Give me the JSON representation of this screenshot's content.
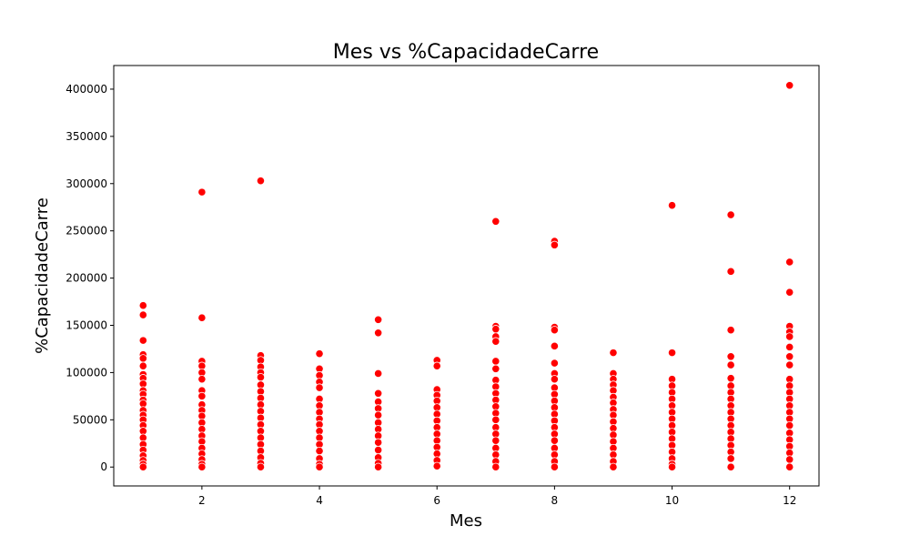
{
  "chart_data": {
    "type": "scatter",
    "title": "Mes vs %CapacidadeCarre",
    "xlabel": "Mes",
    "ylabel": "%CapacidadeCarre",
    "xlim": [
      0.5,
      12.5
    ],
    "ylim": [
      -20000,
      425000
    ],
    "xticks": [
      2,
      4,
      6,
      8,
      10,
      12
    ],
    "yticks": [
      0,
      50000,
      100000,
      150000,
      200000,
      250000,
      300000,
      350000,
      400000
    ],
    "grid": false,
    "point_color": "#ff0000",
    "points": [
      {
        "x": 1,
        "y": 171000
      },
      {
        "x": 1,
        "y": 161000
      },
      {
        "x": 1,
        "y": 134000
      },
      {
        "x": 1,
        "y": 119000
      },
      {
        "x": 1,
        "y": 115000
      },
      {
        "x": 1,
        "y": 107000
      },
      {
        "x": 1,
        "y": 98000
      },
      {
        "x": 1,
        "y": 94000
      },
      {
        "x": 1,
        "y": 88000
      },
      {
        "x": 1,
        "y": 81000
      },
      {
        "x": 1,
        "y": 77000
      },
      {
        "x": 1,
        "y": 71000
      },
      {
        "x": 1,
        "y": 67000
      },
      {
        "x": 1,
        "y": 60000
      },
      {
        "x": 1,
        "y": 55000
      },
      {
        "x": 1,
        "y": 50000
      },
      {
        "x": 1,
        "y": 44000
      },
      {
        "x": 1,
        "y": 38000
      },
      {
        "x": 1,
        "y": 31000
      },
      {
        "x": 1,
        "y": 24000
      },
      {
        "x": 1,
        "y": 18000
      },
      {
        "x": 1,
        "y": 12000
      },
      {
        "x": 1,
        "y": 7000
      },
      {
        "x": 1,
        "y": 3000
      },
      {
        "x": 1,
        "y": 0
      },
      {
        "x": 2,
        "y": 291000
      },
      {
        "x": 2,
        "y": 158000
      },
      {
        "x": 2,
        "y": 112000
      },
      {
        "x": 2,
        "y": 107000
      },
      {
        "x": 2,
        "y": 100000
      },
      {
        "x": 2,
        "y": 93000
      },
      {
        "x": 2,
        "y": 81000
      },
      {
        "x": 2,
        "y": 75000
      },
      {
        "x": 2,
        "y": 66000
      },
      {
        "x": 2,
        "y": 60000
      },
      {
        "x": 2,
        "y": 54000
      },
      {
        "x": 2,
        "y": 47000
      },
      {
        "x": 2,
        "y": 40000
      },
      {
        "x": 2,
        "y": 33000
      },
      {
        "x": 2,
        "y": 27000
      },
      {
        "x": 2,
        "y": 20000
      },
      {
        "x": 2,
        "y": 14000
      },
      {
        "x": 2,
        "y": 8000
      },
      {
        "x": 2,
        "y": 3000
      },
      {
        "x": 2,
        "y": 0
      },
      {
        "x": 3,
        "y": 303000
      },
      {
        "x": 3,
        "y": 118000
      },
      {
        "x": 3,
        "y": 113000
      },
      {
        "x": 3,
        "y": 106000
      },
      {
        "x": 3,
        "y": 100000
      },
      {
        "x": 3,
        "y": 95000
      },
      {
        "x": 3,
        "y": 87000
      },
      {
        "x": 3,
        "y": 80000
      },
      {
        "x": 3,
        "y": 73000
      },
      {
        "x": 3,
        "y": 66000
      },
      {
        "x": 3,
        "y": 59000
      },
      {
        "x": 3,
        "y": 52000
      },
      {
        "x": 3,
        "y": 45000
      },
      {
        "x": 3,
        "y": 38000
      },
      {
        "x": 3,
        "y": 31000
      },
      {
        "x": 3,
        "y": 24000
      },
      {
        "x": 3,
        "y": 17000
      },
      {
        "x": 3,
        "y": 10000
      },
      {
        "x": 3,
        "y": 4000
      },
      {
        "x": 3,
        "y": 0
      },
      {
        "x": 4,
        "y": 120000
      },
      {
        "x": 4,
        "y": 104000
      },
      {
        "x": 4,
        "y": 97000
      },
      {
        "x": 4,
        "y": 90000
      },
      {
        "x": 4,
        "y": 84000
      },
      {
        "x": 4,
        "y": 72000
      },
      {
        "x": 4,
        "y": 65000
      },
      {
        "x": 4,
        "y": 58000
      },
      {
        "x": 4,
        "y": 51000
      },
      {
        "x": 4,
        "y": 45000
      },
      {
        "x": 4,
        "y": 38000
      },
      {
        "x": 4,
        "y": 31000
      },
      {
        "x": 4,
        "y": 24000
      },
      {
        "x": 4,
        "y": 17000
      },
      {
        "x": 4,
        "y": 9000
      },
      {
        "x": 4,
        "y": 3000
      },
      {
        "x": 4,
        "y": 0
      },
      {
        "x": 5,
        "y": 156000
      },
      {
        "x": 5,
        "y": 142000
      },
      {
        "x": 5,
        "y": 99000
      },
      {
        "x": 5,
        "y": 78000
      },
      {
        "x": 5,
        "y": 69000
      },
      {
        "x": 5,
        "y": 62000
      },
      {
        "x": 5,
        "y": 55000
      },
      {
        "x": 5,
        "y": 47000
      },
      {
        "x": 5,
        "y": 40000
      },
      {
        "x": 5,
        "y": 33000
      },
      {
        "x": 5,
        "y": 26000
      },
      {
        "x": 5,
        "y": 18000
      },
      {
        "x": 5,
        "y": 10000
      },
      {
        "x": 5,
        "y": 4000
      },
      {
        "x": 5,
        "y": 0
      },
      {
        "x": 6,
        "y": 113000
      },
      {
        "x": 6,
        "y": 107000
      },
      {
        "x": 6,
        "y": 82000
      },
      {
        "x": 6,
        "y": 76000
      },
      {
        "x": 6,
        "y": 70000
      },
      {
        "x": 6,
        "y": 63000
      },
      {
        "x": 6,
        "y": 56000
      },
      {
        "x": 6,
        "y": 49000
      },
      {
        "x": 6,
        "y": 42000
      },
      {
        "x": 6,
        "y": 35000
      },
      {
        "x": 6,
        "y": 28000
      },
      {
        "x": 6,
        "y": 21000
      },
      {
        "x": 6,
        "y": 14000
      },
      {
        "x": 6,
        "y": 7000
      },
      {
        "x": 6,
        "y": 1000
      },
      {
        "x": 7,
        "y": 260000
      },
      {
        "x": 7,
        "y": 149000
      },
      {
        "x": 7,
        "y": 146000
      },
      {
        "x": 7,
        "y": 138000
      },
      {
        "x": 7,
        "y": 133000
      },
      {
        "x": 7,
        "y": 112000
      },
      {
        "x": 7,
        "y": 104000
      },
      {
        "x": 7,
        "y": 92000
      },
      {
        "x": 7,
        "y": 85000
      },
      {
        "x": 7,
        "y": 78000
      },
      {
        "x": 7,
        "y": 71000
      },
      {
        "x": 7,
        "y": 64000
      },
      {
        "x": 7,
        "y": 57000
      },
      {
        "x": 7,
        "y": 50000
      },
      {
        "x": 7,
        "y": 42000
      },
      {
        "x": 7,
        "y": 35000
      },
      {
        "x": 7,
        "y": 28000
      },
      {
        "x": 7,
        "y": 20000
      },
      {
        "x": 7,
        "y": 13000
      },
      {
        "x": 7,
        "y": 6000
      },
      {
        "x": 7,
        "y": 0
      },
      {
        "x": 8,
        "y": 239000
      },
      {
        "x": 8,
        "y": 235000
      },
      {
        "x": 8,
        "y": 148000
      },
      {
        "x": 8,
        "y": 145000
      },
      {
        "x": 8,
        "y": 128000
      },
      {
        "x": 8,
        "y": 110000
      },
      {
        "x": 8,
        "y": 99000
      },
      {
        "x": 8,
        "y": 93000
      },
      {
        "x": 8,
        "y": 84000
      },
      {
        "x": 8,
        "y": 77000
      },
      {
        "x": 8,
        "y": 70000
      },
      {
        "x": 8,
        "y": 63000
      },
      {
        "x": 8,
        "y": 56000
      },
      {
        "x": 8,
        "y": 49000
      },
      {
        "x": 8,
        "y": 42000
      },
      {
        "x": 8,
        "y": 35000
      },
      {
        "x": 8,
        "y": 28000
      },
      {
        "x": 8,
        "y": 20000
      },
      {
        "x": 8,
        "y": 13000
      },
      {
        "x": 8,
        "y": 6000
      },
      {
        "x": 8,
        "y": 0
      },
      {
        "x": 9,
        "y": 121000
      },
      {
        "x": 9,
        "y": 99000
      },
      {
        "x": 9,
        "y": 93000
      },
      {
        "x": 9,
        "y": 87000
      },
      {
        "x": 9,
        "y": 81000
      },
      {
        "x": 9,
        "y": 74000
      },
      {
        "x": 9,
        "y": 68000
      },
      {
        "x": 9,
        "y": 61000
      },
      {
        "x": 9,
        "y": 55000
      },
      {
        "x": 9,
        "y": 48000
      },
      {
        "x": 9,
        "y": 41000
      },
      {
        "x": 9,
        "y": 34000
      },
      {
        "x": 9,
        "y": 27000
      },
      {
        "x": 9,
        "y": 20000
      },
      {
        "x": 9,
        "y": 13000
      },
      {
        "x": 9,
        "y": 6000
      },
      {
        "x": 9,
        "y": 0
      },
      {
        "x": 10,
        "y": 277000
      },
      {
        "x": 10,
        "y": 121000
      },
      {
        "x": 10,
        "y": 93000
      },
      {
        "x": 10,
        "y": 86000
      },
      {
        "x": 10,
        "y": 79000
      },
      {
        "x": 10,
        "y": 72000
      },
      {
        "x": 10,
        "y": 65000
      },
      {
        "x": 10,
        "y": 58000
      },
      {
        "x": 10,
        "y": 51000
      },
      {
        "x": 10,
        "y": 44000
      },
      {
        "x": 10,
        "y": 37000
      },
      {
        "x": 10,
        "y": 30000
      },
      {
        "x": 10,
        "y": 23000
      },
      {
        "x": 10,
        "y": 16000
      },
      {
        "x": 10,
        "y": 9000
      },
      {
        "x": 10,
        "y": 3000
      },
      {
        "x": 10,
        "y": 0
      },
      {
        "x": 11,
        "y": 267000
      },
      {
        "x": 11,
        "y": 207000
      },
      {
        "x": 11,
        "y": 145000
      },
      {
        "x": 11,
        "y": 117000
      },
      {
        "x": 11,
        "y": 108000
      },
      {
        "x": 11,
        "y": 94000
      },
      {
        "x": 11,
        "y": 86000
      },
      {
        "x": 11,
        "y": 79000
      },
      {
        "x": 11,
        "y": 72000
      },
      {
        "x": 11,
        "y": 65000
      },
      {
        "x": 11,
        "y": 58000
      },
      {
        "x": 11,
        "y": 51000
      },
      {
        "x": 11,
        "y": 44000
      },
      {
        "x": 11,
        "y": 37000
      },
      {
        "x": 11,
        "y": 30000
      },
      {
        "x": 11,
        "y": 23000
      },
      {
        "x": 11,
        "y": 16000
      },
      {
        "x": 11,
        "y": 9000
      },
      {
        "x": 11,
        "y": 0
      },
      {
        "x": 12,
        "y": 404000
      },
      {
        "x": 12,
        "y": 217000
      },
      {
        "x": 12,
        "y": 185000
      },
      {
        "x": 12,
        "y": 149000
      },
      {
        "x": 12,
        "y": 143000
      },
      {
        "x": 12,
        "y": 138000
      },
      {
        "x": 12,
        "y": 127000
      },
      {
        "x": 12,
        "y": 117000
      },
      {
        "x": 12,
        "y": 108000
      },
      {
        "x": 12,
        "y": 93000
      },
      {
        "x": 12,
        "y": 86000
      },
      {
        "x": 12,
        "y": 79000
      },
      {
        "x": 12,
        "y": 72000
      },
      {
        "x": 12,
        "y": 65000
      },
      {
        "x": 12,
        "y": 58000
      },
      {
        "x": 12,
        "y": 51000
      },
      {
        "x": 12,
        "y": 44000
      },
      {
        "x": 12,
        "y": 36000
      },
      {
        "x": 12,
        "y": 29000
      },
      {
        "x": 12,
        "y": 22000
      },
      {
        "x": 12,
        "y": 15000
      },
      {
        "x": 12,
        "y": 8000
      },
      {
        "x": 12,
        "y": 0
      }
    ]
  }
}
